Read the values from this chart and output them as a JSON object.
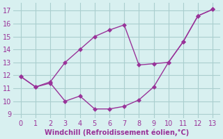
{
  "x": [
    0,
    1,
    2,
    3,
    4,
    5,
    6,
    7,
    8,
    9,
    10,
    11,
    12,
    13
  ],
  "line_windchill_y": [
    11.9,
    11.1,
    11.4,
    10.0,
    10.4,
    9.4,
    9.4,
    9.6,
    10.1,
    11.1,
    13.0,
    14.6,
    16.6,
    17.1
  ],
  "line_temp_y": [
    11.9,
    11.1,
    11.5,
    13.0,
    14.0,
    15.0,
    15.5,
    15.9,
    12.8,
    12.9,
    13.0,
    14.6,
    16.6,
    17.1
  ],
  "line_color": "#993399",
  "background_color": "#d8f0f0",
  "grid_color": "#aacece",
  "xlabel": "Windchill (Refroidissement éolien,°C)",
  "xlim": [
    -0.5,
    13.5
  ],
  "ylim": [
    8.7,
    17.6
  ],
  "yticks": [
    9,
    10,
    11,
    12,
    13,
    14,
    15,
    16,
    17
  ],
  "xticks": [
    0,
    1,
    2,
    3,
    4,
    5,
    6,
    7,
    8,
    9,
    10,
    11,
    12,
    13
  ],
  "label_color": "#993399",
  "tick_color": "#993399",
  "markersize": 3,
  "linewidth": 1.0
}
